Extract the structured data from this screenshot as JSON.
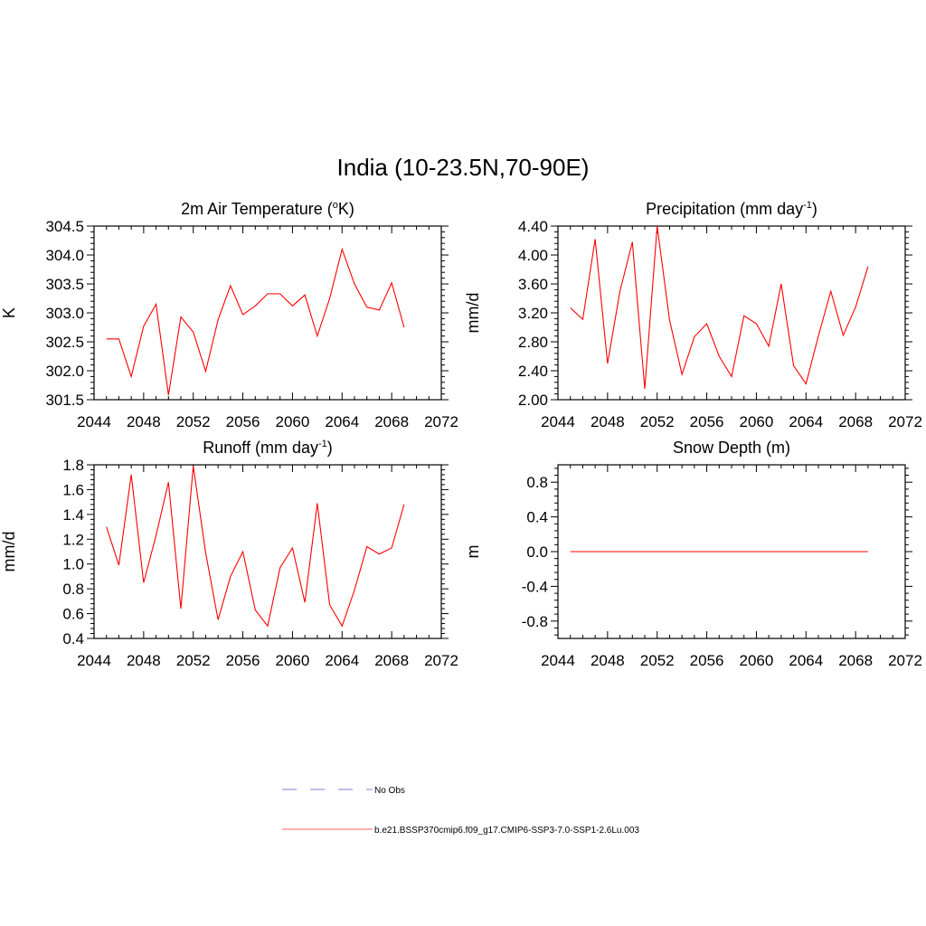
{
  "title": "India (10-23.5N,70-90E)",
  "legend": [
    {
      "label": "No Obs",
      "color": "#9a9ae0",
      "dash": true
    },
    {
      "label": "b.e21.BSSP370cmip6.f09_g17.CMIP6-SSP3-7.0-SSP1-2.6Lu.003",
      "color": "#ff8080",
      "dash": false
    }
  ],
  "chart_data": [
    {
      "type": "line",
      "title": "2m Air Temperature (°K)",
      "title_parts": {
        "pre": "2m Air Temperature (",
        "sup": "o",
        "post": "K)"
      },
      "ylabel": "K",
      "xlim": [
        2044,
        2072
      ],
      "ylim": [
        301.5,
        304.5
      ],
      "xticks": [
        2044,
        2048,
        2052,
        2056,
        2060,
        2064,
        2068,
        2072
      ],
      "yticks": [
        "301.5",
        "302.0",
        "302.5",
        "303.0",
        "303.5",
        "304.0",
        "304.5"
      ],
      "x": [
        2045,
        2046,
        2047,
        2048,
        2049,
        2050,
        2051,
        2052,
        2053,
        2054,
        2055,
        2056,
        2057,
        2058,
        2059,
        2060,
        2061,
        2062,
        2063,
        2064,
        2065,
        2066,
        2067,
        2068,
        2069
      ],
      "series": [
        {
          "color": "#ff0000",
          "values": [
            302.55,
            302.55,
            301.9,
            302.77,
            303.15,
            301.58,
            302.93,
            302.67,
            301.99,
            302.88,
            303.47,
            302.97,
            303.12,
            303.33,
            303.33,
            303.12,
            303.31,
            302.6,
            303.25,
            304.1,
            303.5,
            303.1,
            303.05,
            303.52,
            302.75
          ]
        }
      ]
    },
    {
      "type": "line",
      "title": "Precipitation (mm day-1)",
      "title_parts": {
        "pre": "Precipitation (mm day",
        "sup": "-1",
        "post": ")"
      },
      "ylabel": "mm/d",
      "xlim": [
        2044,
        2072
      ],
      "ylim": [
        2.0,
        4.4
      ],
      "xticks": [
        2044,
        2048,
        2052,
        2056,
        2060,
        2064,
        2068,
        2072
      ],
      "yticks": [
        "2.00",
        "2.40",
        "2.80",
        "3.20",
        "3.60",
        "4.00",
        "4.40"
      ],
      "x": [
        2045,
        2046,
        2047,
        2048,
        2049,
        2050,
        2051,
        2052,
        2053,
        2054,
        2055,
        2056,
        2057,
        2058,
        2059,
        2060,
        2061,
        2062,
        2063,
        2064,
        2065,
        2066,
        2067,
        2068,
        2069
      ],
      "series": [
        {
          "color": "#ff0000",
          "values": [
            3.27,
            3.11,
            4.22,
            2.5,
            3.5,
            4.18,
            2.15,
            4.4,
            3.1,
            2.35,
            2.87,
            3.05,
            2.6,
            2.32,
            3.16,
            3.05,
            2.74,
            3.6,
            2.47,
            2.22,
            2.88,
            3.5,
            2.89,
            3.28,
            3.84
          ]
        }
      ]
    },
    {
      "type": "line",
      "title": "Runoff (mm day-1)",
      "title_parts": {
        "pre": "Runoff (mm day",
        "sup": "-1",
        "post": ")"
      },
      "ylabel": "mm/d",
      "xlim": [
        2044,
        2072
      ],
      "ylim": [
        0.4,
        1.8
      ],
      "xticks": [
        2044,
        2048,
        2052,
        2056,
        2060,
        2064,
        2068,
        2072
      ],
      "yticks": [
        "0.4",
        "0.6",
        "0.8",
        "1.0",
        "1.2",
        "1.4",
        "1.6",
        "1.8"
      ],
      "x": [
        2045,
        2046,
        2047,
        2048,
        2049,
        2050,
        2051,
        2052,
        2053,
        2054,
        2055,
        2056,
        2057,
        2058,
        2059,
        2060,
        2061,
        2062,
        2063,
        2064,
        2065,
        2066,
        2067,
        2068,
        2069
      ],
      "series": [
        {
          "color": "#ff0000",
          "values": [
            1.3,
            0.99,
            1.72,
            0.85,
            1.23,
            1.66,
            0.64,
            1.79,
            1.09,
            0.55,
            0.9,
            1.1,
            0.63,
            0.5,
            0.97,
            1.13,
            0.69,
            1.49,
            0.67,
            0.5,
            0.79,
            1.14,
            1.08,
            1.13,
            1.48
          ]
        }
      ]
    },
    {
      "type": "line",
      "title": "Snow Depth (m)",
      "title_parts": {
        "pre": "Snow Depth (m)",
        "sup": "",
        "post": ""
      },
      "ylabel": "m",
      "xlim": [
        2044,
        2072
      ],
      "ylim": [
        -1.0,
        1.0
      ],
      "xticks": [
        2044,
        2048,
        2052,
        2056,
        2060,
        2064,
        2068,
        2072
      ],
      "yticks": [
        "-0.8",
        "-0.4",
        "0.0",
        "0.4",
        "0.8"
      ],
      "ytick_values": [
        -0.8,
        -0.4,
        0.0,
        0.4,
        0.8
      ],
      "x": [
        2045,
        2046,
        2047,
        2048,
        2049,
        2050,
        2051,
        2052,
        2053,
        2054,
        2055,
        2056,
        2057,
        2058,
        2059,
        2060,
        2061,
        2062,
        2063,
        2064,
        2065,
        2066,
        2067,
        2068,
        2069
      ],
      "series": [
        {
          "color": "#ff0000",
          "values": [
            0,
            0,
            0,
            0,
            0,
            0,
            0,
            0,
            0,
            0,
            0,
            0,
            0,
            0,
            0,
            0,
            0,
            0,
            0,
            0,
            0,
            0,
            0,
            0,
            0
          ]
        }
      ]
    }
  ]
}
